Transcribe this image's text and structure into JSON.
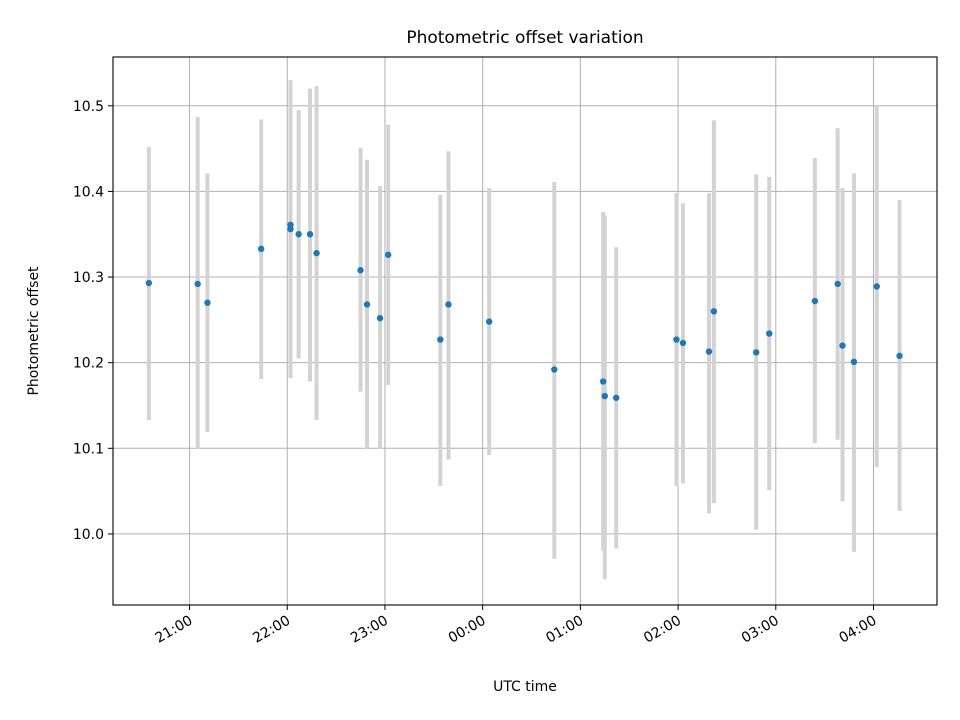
{
  "chart_data": {
    "type": "scatter",
    "title": "Photometric offset variation",
    "xlabel": "UTC time",
    "ylabel": "Photometric offset",
    "x_axis_kind": "time",
    "xlim": [
      "20:13",
      "04:39"
    ],
    "ylim": [
      9.917,
      10.557
    ],
    "grid": true,
    "x_ticks": [
      "21:00",
      "22:00",
      "23:00",
      "00:00",
      "01:00",
      "02:00",
      "03:00",
      "04:00"
    ],
    "y_ticks": [
      "10.0",
      "10.1",
      "10.2",
      "10.3",
      "10.4",
      "10.5"
    ],
    "y_tick_values": [
      10.0,
      10.1,
      10.2,
      10.3,
      10.4,
      10.5
    ],
    "marker_color": "#1f77b4",
    "errorbar_color": "#d3d3d3",
    "series": [
      {
        "points": [
          {
            "x": "20:35",
            "y": 10.293,
            "ylo": 10.133,
            "yhi": 10.452
          },
          {
            "x": "21:05",
            "y": 10.292,
            "ylo": 10.099,
            "yhi": 10.487
          },
          {
            "x": "21:11",
            "y": 10.27,
            "ylo": 10.119,
            "yhi": 10.421
          },
          {
            "x": "21:44",
            "y": 10.333,
            "ylo": 10.181,
            "yhi": 10.484
          },
          {
            "x": "22:02",
            "y": 10.356,
            "ylo": 10.182,
            "yhi": 10.53
          },
          {
            "x": "22:02",
            "y": 10.361,
            "ylo": 10.198,
            "yhi": 10.522
          },
          {
            "x": "22:07",
            "y": 10.35,
            "ylo": 10.205,
            "yhi": 10.495
          },
          {
            "x": "22:14",
            "y": 10.35,
            "ylo": 10.178,
            "yhi": 10.52
          },
          {
            "x": "22:18",
            "y": 10.328,
            "ylo": 10.133,
            "yhi": 10.523
          },
          {
            "x": "22:45",
            "y": 10.308,
            "ylo": 10.166,
            "yhi": 10.451
          },
          {
            "x": "22:49",
            "y": 10.268,
            "ylo": 10.099,
            "yhi": 10.437
          },
          {
            "x": "22:57",
            "y": 10.252,
            "ylo": 10.099,
            "yhi": 10.406
          },
          {
            "x": "23:02",
            "y": 10.326,
            "ylo": 10.174,
            "yhi": 10.478
          },
          {
            "x": "23:34",
            "y": 10.227,
            "ylo": 10.056,
            "yhi": 10.396
          },
          {
            "x": "23:39",
            "y": 10.268,
            "ylo": 10.087,
            "yhi": 10.447
          },
          {
            "x": "00:04",
            "y": 10.248,
            "ylo": 10.092,
            "yhi": 10.404
          },
          {
            "x": "00:44",
            "y": 10.192,
            "ylo": 9.971,
            "yhi": 10.411
          },
          {
            "x": "01:14",
            "y": 10.178,
            "ylo": 9.98,
            "yhi": 10.376
          },
          {
            "x": "01:15",
            "y": 10.161,
            "ylo": 9.947,
            "yhi": 10.372
          },
          {
            "x": "01:22",
            "y": 10.159,
            "ylo": 9.983,
            "yhi": 10.335
          },
          {
            "x": "01:59",
            "y": 10.227,
            "ylo": 10.056,
            "yhi": 10.398
          },
          {
            "x": "02:03",
            "y": 10.223,
            "ylo": 10.059,
            "yhi": 10.386
          },
          {
            "x": "02:19",
            "y": 10.213,
            "ylo": 10.024,
            "yhi": 10.398
          },
          {
            "x": "02:22",
            "y": 10.26,
            "ylo": 10.036,
            "yhi": 10.483
          },
          {
            "x": "02:48",
            "y": 10.212,
            "ylo": 10.005,
            "yhi": 10.42
          },
          {
            "x": "02:56",
            "y": 10.234,
            "ylo": 10.051,
            "yhi": 10.417
          },
          {
            "x": "03:24",
            "y": 10.272,
            "ylo": 10.106,
            "yhi": 10.439
          },
          {
            "x": "03:38",
            "y": 10.292,
            "ylo": 10.11,
            "yhi": 10.474
          },
          {
            "x": "03:41",
            "y": 10.22,
            "ylo": 10.038,
            "yhi": 10.404
          },
          {
            "x": "03:48",
            "y": 10.201,
            "ylo": 9.979,
            "yhi": 10.421
          },
          {
            "x": "04:02",
            "y": 10.289,
            "ylo": 10.078,
            "yhi": 10.5
          },
          {
            "x": "04:16",
            "y": 10.208,
            "ylo": 10.027,
            "yhi": 10.39
          }
        ]
      }
    ]
  }
}
